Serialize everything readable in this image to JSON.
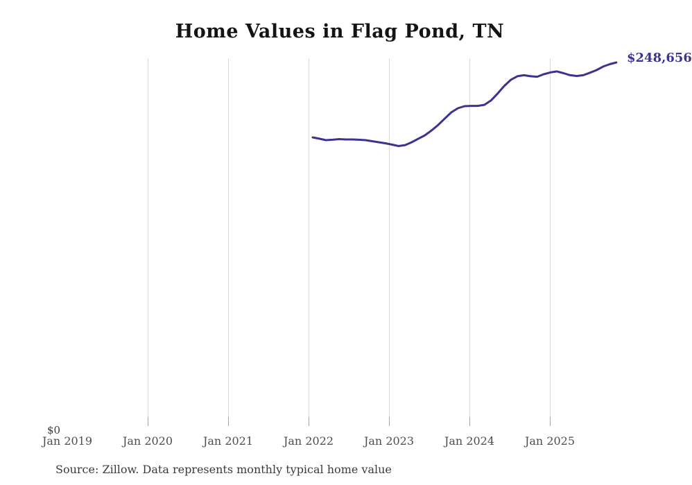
{
  "page": {
    "title": "Home Values in Flag Pond, TN"
  },
  "footer": {
    "source": "Source: Zillow. Data represents monthly typical home value"
  },
  "chart_data": {
    "type": "line",
    "title": "Home Values in Flag Pond, TN",
    "xlabel": "",
    "ylabel": "",
    "legend": "none",
    "grid": "vertical-only",
    "x_ticks": [
      "Jan 2019",
      "Jan 2020",
      "Jan 2021",
      "Jan 2022",
      "Jan 2023",
      "Jan 2024",
      "Jan 2025"
    ],
    "y_zero_label": "$0",
    "end_label": "$248,656",
    "ylim": [
      0,
      248656
    ],
    "line_color": "#3a3390",
    "gridline_color": "#d9d9d9",
    "tick_color": "#a6a6a6",
    "series": [
      {
        "name": "Monthly typical home value",
        "color": "#3a3390",
        "months": [
          "2022-01",
          "2022-02",
          "2022-03",
          "2022-04",
          "2022-05",
          "2022-06",
          "2022-07",
          "2022-08",
          "2022-09",
          "2022-10",
          "2022-11",
          "2022-12",
          "2023-01",
          "2023-02",
          "2023-03",
          "2023-04",
          "2023-05",
          "2023-06",
          "2023-07",
          "2023-08",
          "2023-09",
          "2023-10",
          "2023-11",
          "2023-12",
          "2024-01",
          "2024-02",
          "2024-03",
          "2024-04",
          "2024-05",
          "2024-06",
          "2024-07",
          "2024-08",
          "2024-09",
          "2024-10",
          "2024-11",
          "2024-12",
          "2025-01",
          "2025-02",
          "2025-03",
          "2025-04",
          "2025-05",
          "2025-06",
          "2025-07",
          "2025-08",
          "2025-09",
          "2025-10",
          "2025-11"
        ],
        "values": [
          198000,
          197100,
          196100,
          196400,
          196800,
          196600,
          196600,
          196400,
          196100,
          195400,
          194700,
          194000,
          193100,
          192100,
          192800,
          194700,
          197100,
          199400,
          202700,
          206400,
          210700,
          214900,
          217700,
          219100,
          219300,
          219300,
          220000,
          222900,
          227600,
          232700,
          236900,
          239300,
          240000,
          239300,
          239000,
          240700,
          241900,
          242600,
          241400,
          240000,
          239500,
          240000,
          241700,
          243500,
          245900,
          247500,
          248656
        ]
      }
    ]
  }
}
